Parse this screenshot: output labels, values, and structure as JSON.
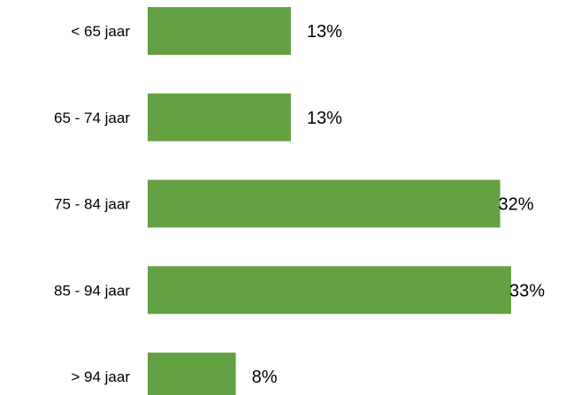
{
  "chart_data": {
    "type": "bar",
    "orientation": "horizontal",
    "categories": [
      "< 65 jaar",
      "65 - 74 jaar",
      "75 - 84 jaar",
      "85 - 94 jaar",
      "> 94 jaar"
    ],
    "values": [
      13,
      13,
      32,
      33,
      8
    ],
    "value_labels": [
      "13%",
      "13%",
      "32%",
      "33%",
      "8%"
    ],
    "unit": "%",
    "bar_color": "#63A143",
    "xlim": [
      0,
      33
    ],
    "grid": false,
    "legend": "none"
  }
}
